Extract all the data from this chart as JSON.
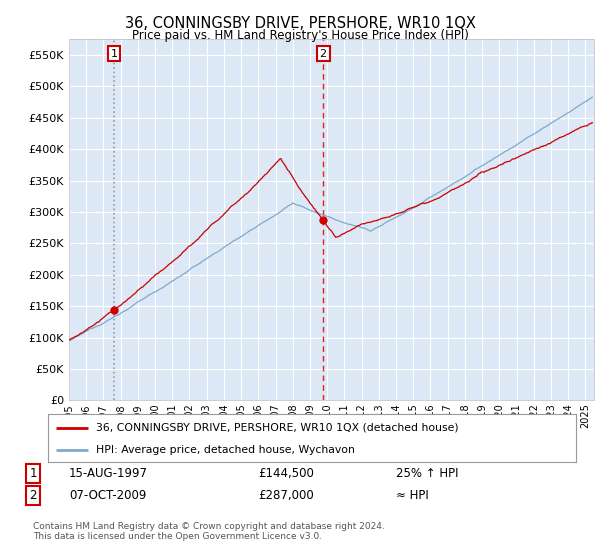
{
  "title": "36, CONNINGSBY DRIVE, PERSHORE, WR10 1QX",
  "subtitle": "Price paid vs. HM Land Registry's House Price Index (HPI)",
  "ylabel_ticks": [
    "£0",
    "£50K",
    "£100K",
    "£150K",
    "£200K",
    "£250K",
    "£300K",
    "£350K",
    "£400K",
    "£450K",
    "£500K",
    "£550K"
  ],
  "ytick_values": [
    0,
    50000,
    100000,
    150000,
    200000,
    250000,
    300000,
    350000,
    400000,
    450000,
    500000,
    550000
  ],
  "ylim": [
    0,
    575000
  ],
  "xlim_start": 1995.0,
  "xlim_end": 2025.5,
  "sale1_x": 1997.617,
  "sale1_y": 144500,
  "sale1_label": "1",
  "sale1_date": "15-AUG-1997",
  "sale1_price": "£144,500",
  "sale1_hpi": "25% ↑ HPI",
  "sale2_x": 2009.767,
  "sale2_y": 287000,
  "sale2_label": "2",
  "sale2_date": "07-OCT-2009",
  "sale2_price": "£287,000",
  "sale2_hpi": "≈ HPI",
  "line_red_color": "#cc0000",
  "line_blue_color": "#7faacc",
  "sale1_dash_color": "#aaaaaa",
  "sale2_dash_color": "#dd2222",
  "marker_box_color": "#cc0000",
  "bg_color": "#ffffff",
  "plot_bg_color": "#dce8f5",
  "grid_color": "#ffffff",
  "legend_line1": "36, CONNINGSBY DRIVE, PERSHORE, WR10 1QX (detached house)",
  "legend_line2": "HPI: Average price, detached house, Wychavon",
  "footer": "Contains HM Land Registry data © Crown copyright and database right 2024.\nThis data is licensed under the Open Government Licence v3.0.",
  "xtick_years": [
    1995,
    1996,
    1997,
    1998,
    1999,
    2000,
    2001,
    2002,
    2003,
    2004,
    2005,
    2006,
    2007,
    2008,
    2009,
    2010,
    2011,
    2012,
    2013,
    2014,
    2015,
    2016,
    2017,
    2018,
    2019,
    2020,
    2021,
    2022,
    2023,
    2024,
    2025
  ]
}
